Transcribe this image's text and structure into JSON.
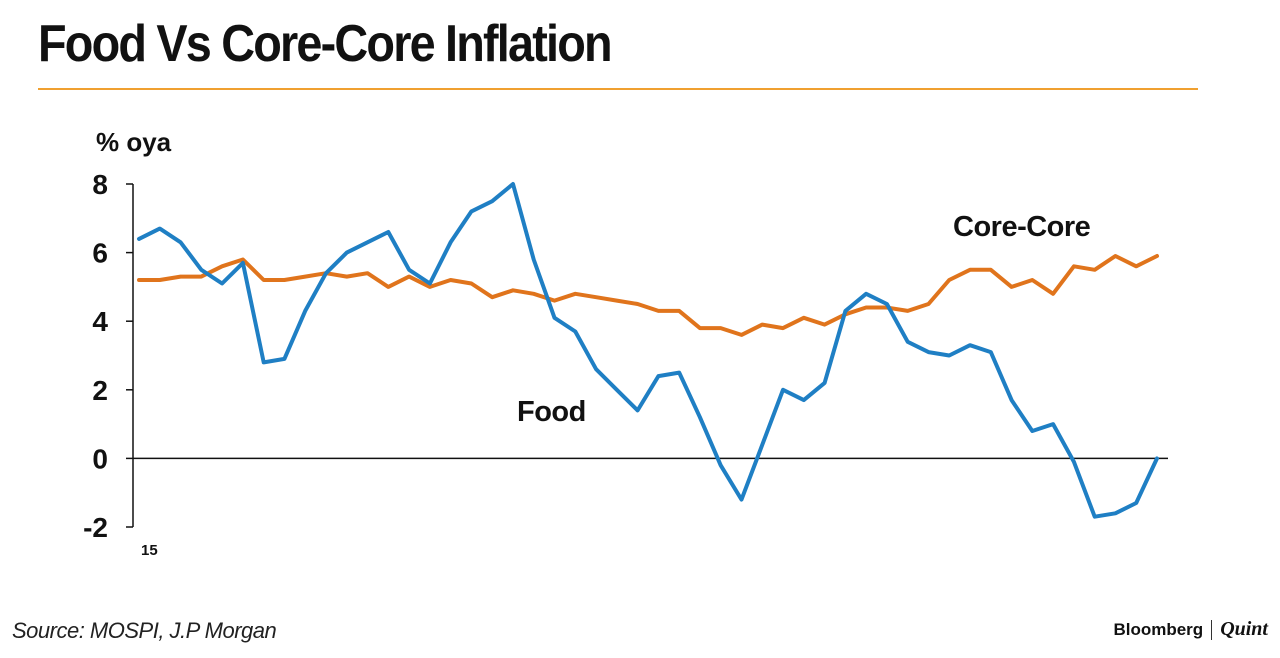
{
  "header": {
    "title": "Food Vs Core-Core Inflation"
  },
  "footer": {
    "source": "Source: MOSPI, J.P Morgan",
    "brand_left": "Bloomberg",
    "brand_right": "Quint"
  },
  "colors": {
    "accent_rule": "#f0a030",
    "food": "#1f7fc4",
    "core_core": "#e0741c"
  },
  "chart_data": {
    "type": "line",
    "title": "Food Vs Core-Core Inflation",
    "ylabel": "% oya",
    "xlabel": "",
    "ylim": [
      -2,
      8
    ],
    "yticks": [
      8,
      6,
      4,
      2,
      0,
      -2
    ],
    "x_tick_labels": [
      {
        "index": 0,
        "label": "15"
      }
    ],
    "grid": false,
    "legend": "inline labels",
    "series": [
      {
        "name": "Food",
        "label": "Food",
        "color": "#1f7fc4",
        "values": [
          6.4,
          6.7,
          6.3,
          5.5,
          5.1,
          5.7,
          2.8,
          2.9,
          4.3,
          5.4,
          6.0,
          6.3,
          6.6,
          5.5,
          5.1,
          6.3,
          7.2,
          7.5,
          8.0,
          5.8,
          4.1,
          3.7,
          2.6,
          2.0,
          1.4,
          2.4,
          2.5,
          1.2,
          -0.2,
          -1.2,
          0.4,
          2.0,
          1.7,
          2.2,
          4.3,
          4.8,
          4.5,
          3.4,
          3.1,
          3.0,
          3.3,
          3.1,
          1.7,
          0.8,
          1.0,
          -0.1,
          -1.7,
          -1.6,
          -1.3,
          0.0
        ]
      },
      {
        "name": "Core-Core",
        "label": "Core-Core",
        "color": "#e0741c",
        "values": [
          5.2,
          5.2,
          5.3,
          5.3,
          5.6,
          5.8,
          5.2,
          5.2,
          5.3,
          5.4,
          5.3,
          5.4,
          5.0,
          5.3,
          5.0,
          5.2,
          5.1,
          4.7,
          4.9,
          4.8,
          4.6,
          4.8,
          4.7,
          4.6,
          4.5,
          4.3,
          4.3,
          3.8,
          3.8,
          3.6,
          3.9,
          3.8,
          4.1,
          3.9,
          4.2,
          4.4,
          4.4,
          4.3,
          4.5,
          5.2,
          5.5,
          5.5,
          5.0,
          5.2,
          4.8,
          5.6,
          5.5,
          5.9,
          5.6,
          5.9
        ]
      }
    ]
  }
}
